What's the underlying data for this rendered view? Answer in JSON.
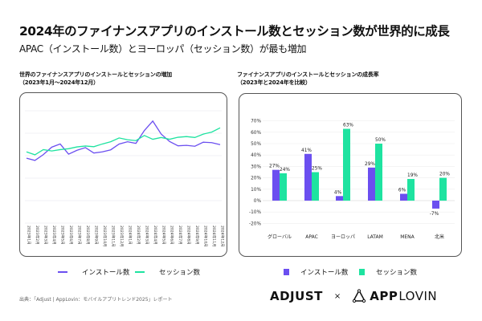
{
  "title": "2024年のファイナンスアプリのインストール数とセッション数が世界的に成長",
  "subtitle": "APAC（インストール数）とヨーロッパ（セッション数）が最も増加",
  "colors": {
    "installs": "#6b4ff0",
    "sessions": "#1ee3a0"
  },
  "chart_data": [
    {
      "type": "line",
      "title": "世界のファイナンスアプリのインストールとセッションの増加",
      "subtitle": "（2023年1月〜2024年12月）",
      "categories": [
        "2023年1月",
        "2023年2月",
        "2023年3月",
        "2023年4月",
        "2023年5月",
        "2023年6月",
        "2023年7月",
        "2023年8月",
        "2023年9月",
        "2023年10月",
        "2023年11月",
        "2023年12月",
        "2024年1月",
        "2024年2月",
        "2024年3月",
        "2024年4月",
        "2024年5月",
        "2024年6月",
        "2024年7月",
        "2024年8月",
        "2024年9月",
        "2024年10月",
        "2024年11月",
        "2024年12月"
      ],
      "ylim": [
        0,
        5
      ],
      "grid": true,
      "legend": "bottom",
      "y_axis_labels": false,
      "series": [
        {
          "name": "インストール数",
          "values": [
            2.89,
            2.79,
            3.05,
            3.38,
            3.52,
            3.07,
            3.24,
            3.36,
            3.12,
            3.17,
            3.26,
            3.52,
            3.62,
            3.55,
            4.12,
            4.54,
            3.96,
            3.63,
            3.44,
            3.46,
            3.42,
            3.6,
            3.58,
            3.49
          ]
        },
        {
          "name": "セッション数",
          "values": [
            3.17,
            3.04,
            3.27,
            3.21,
            3.27,
            3.31,
            3.39,
            3.43,
            3.4,
            3.52,
            3.62,
            3.79,
            3.71,
            3.67,
            3.9,
            3.73,
            3.81,
            3.73,
            3.82,
            3.85,
            3.81,
            3.96,
            4.05,
            4.24
          ]
        }
      ]
    },
    {
      "type": "bar",
      "title": "ファイナンスアプリのインストールとセッションの成長率",
      "subtitle": "（2023年と2024年を比較）",
      "categories": [
        "グローバル",
        "APAC",
        "ヨーロッパ",
        "LATAM",
        "MENA",
        "北米"
      ],
      "ylim": [
        -20,
        70
      ],
      "yticks": [
        "70%",
        "60%",
        "50%",
        "40%",
        "30%",
        "20%",
        "10%",
        "0%",
        "-10%",
        "-20%"
      ],
      "grid": true,
      "legend": "bottom",
      "series": [
        {
          "name": "インストール数",
          "values": [
            27,
            41,
            4,
            29,
            6,
            -7
          ]
        },
        {
          "name": "セッション数",
          "values": [
            24,
            25,
            63,
            50,
            19,
            20
          ]
        }
      ]
    }
  ],
  "source": "出典：「Adjust | AppLovin：モバイルアプリトレンド2025」レポート",
  "logos": {
    "adjust": "ADJUST",
    "times": "×",
    "applovin_bold": "APP",
    "applovin_light": "LOVIN"
  }
}
